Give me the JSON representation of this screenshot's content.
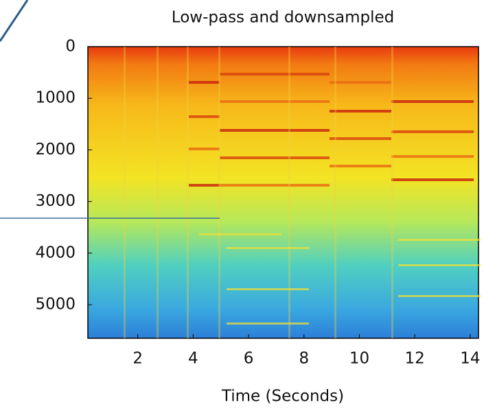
{
  "chart_data": {
    "type": "spectrogram",
    "title": "Low-pass and downsampled",
    "xlabel": "Time (Seconds)",
    "xlim": [
      0.2,
      14.3
    ],
    "xticks": [
      2,
      4,
      6,
      8,
      10,
      12,
      14
    ],
    "ylim": [
      0,
      5650
    ],
    "yticks": [
      0,
      1000,
      2000,
      3000,
      4000,
      5000
    ],
    "y_inverted": true
  }
}
